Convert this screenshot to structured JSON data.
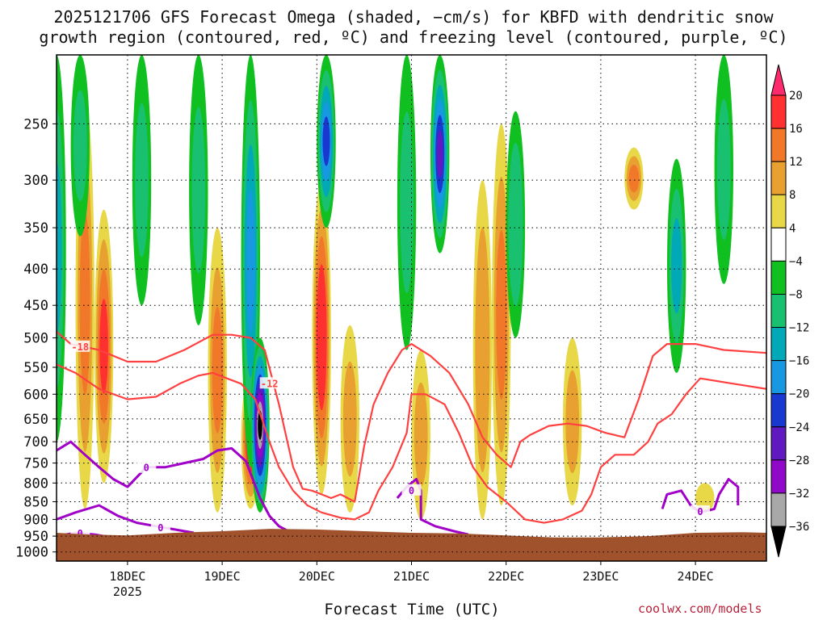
{
  "chart_data": {
    "type": "heatmap",
    "title_line1": "2025121706 GFS Forecast Omega (shaded, −cm/s) for KBFD with dendritic snow",
    "title_line2": "growth region (contoured, red, ºC) and freezing level (contoured, purple, ºC)",
    "xlabel": "Forecast Time (UTC)",
    "ylabel": "",
    "credit": "coolwx.com/models",
    "x_ticks": [
      "18DEC",
      "19DEC",
      "20DEC",
      "21DEC",
      "22DEC",
      "23DEC",
      "24DEC"
    ],
    "x_year_label": "2025",
    "x_range_days": [
      17.25,
      24.75
    ],
    "y_ticks": [
      250,
      300,
      350,
      400,
      450,
      500,
      550,
      600,
      650,
      700,
      750,
      800,
      850,
      900,
      950,
      1000
    ],
    "y_range_hpa": [
      200,
      1030
    ],
    "colorbar": {
      "labels": [
        "20",
        "16",
        "12",
        "8",
        "4",
        "−4",
        "−8",
        "−12",
        "−16",
        "−20",
        "−24",
        "−28",
        "−32",
        "−36"
      ],
      "colors": [
        "#ff2a6e",
        "#ff3030",
        "#f07828",
        "#e8a030",
        "#e8d848",
        "#ffffff",
        "#10c020",
        "#18c070",
        "#00a8b8",
        "#1898e0",
        "#1838d0",
        "#6018c0",
        "#9008c8",
        "#a8a8a8",
        "#000000"
      ]
    },
    "omega_bands": [
      {
        "day": 17.55,
        "p_top": 230,
        "p_bot": 870,
        "max": 12
      },
      {
        "day": 17.75,
        "p_top": 330,
        "p_bot": 800,
        "max": 16
      },
      {
        "day": 18.95,
        "p_top": 350,
        "p_bot": 880,
        "max": 12
      },
      {
        "day": 19.3,
        "p_top": 560,
        "p_bot": 870,
        "max": 20
      },
      {
        "day": 20.05,
        "p_top": 300,
        "p_bot": 830,
        "max": 18
      },
      {
        "day": 20.35,
        "p_top": 480,
        "p_bot": 880,
        "max": 8
      },
      {
        "day": 21.1,
        "p_top": 520,
        "p_bot": 900,
        "max": 8
      },
      {
        "day": 21.75,
        "p_top": 300,
        "p_bot": 900,
        "max": 10
      },
      {
        "day": 21.95,
        "p_top": 250,
        "p_bot": 860,
        "max": 12
      },
      {
        "day": 22.7,
        "p_top": 500,
        "p_bot": 860,
        "max": 8
      },
      {
        "day": 23.35,
        "p_top": 270,
        "p_bot": 330,
        "max": 12
      },
      {
        "day": 24.1,
        "p_top": 800,
        "p_bot": 880,
        "max": 6
      }
    ],
    "upward_bands": [
      {
        "day": 17.25,
        "p_top": 200,
        "p_bot": 700,
        "min": -12
      },
      {
        "day": 17.5,
        "p_top": 200,
        "p_bot": 360,
        "min": -8
      },
      {
        "day": 18.15,
        "p_top": 200,
        "p_bot": 450,
        "min": -8
      },
      {
        "day": 18.75,
        "p_top": 200,
        "p_bot": 480,
        "min": -8
      },
      {
        "day": 19.3,
        "p_top": 200,
        "p_bot": 760,
        "min": -16
      },
      {
        "day": 19.4,
        "p_top": 500,
        "p_bot": 880,
        "min": -36
      },
      {
        "day": 20.1,
        "p_top": 200,
        "p_bot": 350,
        "min": -20
      },
      {
        "day": 20.95,
        "p_top": 200,
        "p_bot": 520,
        "min": -8
      },
      {
        "day": 21.3,
        "p_top": 200,
        "p_bot": 380,
        "min": -24
      },
      {
        "day": 22.1,
        "p_top": 240,
        "p_bot": 500,
        "min": -10
      },
      {
        "day": 23.8,
        "p_top": 280,
        "p_bot": 560,
        "min": -12
      },
      {
        "day": 24.3,
        "p_top": 200,
        "p_bot": 420,
        "min": -8
      }
    ],
    "contours": [
      {
        "level": "-18",
        "color": "#ff4040",
        "points": [
          [
            17.25,
            490
          ],
          [
            17.4,
            510
          ],
          [
            17.7,
            520
          ],
          [
            18.0,
            540
          ],
          [
            18.3,
            540
          ],
          [
            18.6,
            520
          ],
          [
            18.9,
            495
          ],
          [
            19.1,
            495
          ],
          [
            19.3,
            500
          ],
          [
            19.45,
            520
          ],
          [
            19.6,
            620
          ],
          [
            19.75,
            760
          ],
          [
            19.85,
            815
          ],
          [
            19.95,
            820
          ],
          [
            20.05,
            830
          ],
          [
            20.15,
            840
          ],
          [
            20.25,
            830
          ],
          [
            20.4,
            850
          ],
          [
            20.5,
            710
          ],
          [
            20.6,
            620
          ],
          [
            20.75,
            560
          ],
          [
            20.9,
            520
          ],
          [
            21.0,
            510
          ],
          [
            21.2,
            530
          ],
          [
            21.4,
            560
          ],
          [
            21.6,
            620
          ],
          [
            21.75,
            690
          ],
          [
            21.9,
            730
          ],
          [
            22.05,
            760
          ],
          [
            22.15,
            700
          ],
          [
            22.25,
            685
          ],
          [
            22.45,
            665
          ],
          [
            22.65,
            660
          ],
          [
            22.85,
            665
          ],
          [
            23.05,
            680
          ],
          [
            23.25,
            690
          ],
          [
            23.4,
            610
          ],
          [
            23.55,
            530
          ],
          [
            23.7,
            510
          ],
          [
            24.0,
            510
          ],
          [
            24.3,
            520
          ],
          [
            24.75,
            525
          ]
        ],
        "label_at": [
          17.5,
          515
        ]
      },
      {
        "level": "-12",
        "color": "#ff4040",
        "points": [
          [
            17.25,
            545
          ],
          [
            17.45,
            560
          ],
          [
            17.7,
            590
          ],
          [
            18.0,
            610
          ],
          [
            18.3,
            605
          ],
          [
            18.55,
            580
          ],
          [
            18.75,
            565
          ],
          [
            18.9,
            560
          ],
          [
            19.05,
            570
          ],
          [
            19.2,
            580
          ],
          [
            19.35,
            610
          ],
          [
            19.5,
            700
          ],
          [
            19.6,
            760
          ],
          [
            19.75,
            820
          ],
          [
            19.9,
            860
          ],
          [
            20.05,
            880
          ],
          [
            20.25,
            895
          ],
          [
            20.4,
            900
          ],
          [
            20.55,
            880
          ],
          [
            20.65,
            820
          ],
          [
            20.8,
            760
          ],
          [
            20.95,
            680
          ],
          [
            21.0,
            600
          ],
          [
            21.15,
            600
          ],
          [
            21.35,
            620
          ],
          [
            21.5,
            680
          ],
          [
            21.65,
            760
          ],
          [
            21.8,
            810
          ],
          [
            22.0,
            850
          ],
          [
            22.2,
            900
          ],
          [
            22.4,
            910
          ],
          [
            22.6,
            900
          ],
          [
            22.8,
            875
          ],
          [
            22.9,
            830
          ],
          [
            23.0,
            760
          ],
          [
            23.15,
            730
          ],
          [
            23.35,
            730
          ],
          [
            23.5,
            700
          ],
          [
            23.6,
            660
          ],
          [
            23.75,
            640
          ],
          [
            23.9,
            600
          ],
          [
            24.05,
            570
          ],
          [
            24.4,
            580
          ],
          [
            24.75,
            590
          ]
        ],
        "label_at": [
          19.5,
          580
        ]
      },
      {
        "level": "0",
        "color": "#a000c8",
        "points": [
          [
            17.25,
            720
          ],
          [
            17.4,
            700
          ],
          [
            17.55,
            730
          ],
          [
            17.7,
            760
          ],
          [
            17.85,
            790
          ],
          [
            18.0,
            810
          ],
          [
            18.2,
            760
          ],
          [
            18.4,
            760
          ],
          [
            18.6,
            750
          ],
          [
            18.8,
            740
          ],
          [
            18.95,
            720
          ],
          [
            19.1,
            715
          ],
          [
            19.25,
            745
          ],
          [
            19.4,
            840
          ],
          [
            19.5,
            890
          ],
          [
            19.6,
            920
          ],
          [
            19.7,
            935
          ]
        ],
        "label_at": [
          18.2,
          762
        ]
      },
      {
        "level": "0b",
        "color": "#a000c8",
        "points": [
          [
            17.25,
            900
          ],
          [
            17.45,
            880
          ],
          [
            17.7,
            860
          ],
          [
            17.9,
            890
          ],
          [
            18.1,
            910
          ],
          [
            18.3,
            920
          ],
          [
            18.5,
            930
          ],
          [
            18.7,
            940
          ]
        ],
        "label_at": [
          18.35,
          925
        ]
      },
      {
        "level": "0c",
        "color": "#a000c8",
        "points": [
          [
            17.25,
            950
          ],
          [
            17.45,
            940
          ],
          [
            17.65,
            945
          ],
          [
            17.85,
            955
          ]
        ],
        "label_at": [
          17.5,
          942
        ]
      },
      {
        "level": "0d",
        "color": "#a000c8",
        "points": [
          [
            20.85,
            840
          ],
          [
            20.95,
            810
          ],
          [
            21.05,
            790
          ],
          [
            21.1,
            820
          ],
          [
            21.1,
            900
          ],
          [
            21.25,
            920
          ],
          [
            21.45,
            935
          ],
          [
            21.6,
            945
          ]
        ],
        "label_at": [
          21.0,
          820
        ]
      },
      {
        "level": "0e",
        "color": "#a000c8",
        "points": [
          [
            23.65,
            870
          ],
          [
            23.7,
            830
          ],
          [
            23.85,
            820
          ],
          [
            23.95,
            860
          ],
          [
            24.05,
            880
          ],
          [
            24.2,
            870
          ],
          [
            24.25,
            830
          ],
          [
            24.35,
            790
          ],
          [
            24.45,
            810
          ],
          [
            24.45,
            860
          ]
        ],
        "label_at": [
          24.05,
          878
        ]
      }
    ],
    "surface_pressure": [
      [
        17.25,
        940
      ],
      [
        17.6,
        945
      ],
      [
        18.0,
        948
      ],
      [
        18.5,
        940
      ],
      [
        19.0,
        935
      ],
      [
        19.5,
        928
      ],
      [
        20.0,
        930
      ],
      [
        20.5,
        935
      ],
      [
        21.0,
        940
      ],
      [
        21.5,
        942
      ],
      [
        22.0,
        948
      ],
      [
        22.5,
        954
      ],
      [
        23.0,
        954
      ],
      [
        23.5,
        950
      ],
      [
        24.0,
        940
      ],
      [
        24.5,
        938
      ],
      [
        24.75,
        940
      ]
    ],
    "ground_color": "#a0522d"
  }
}
